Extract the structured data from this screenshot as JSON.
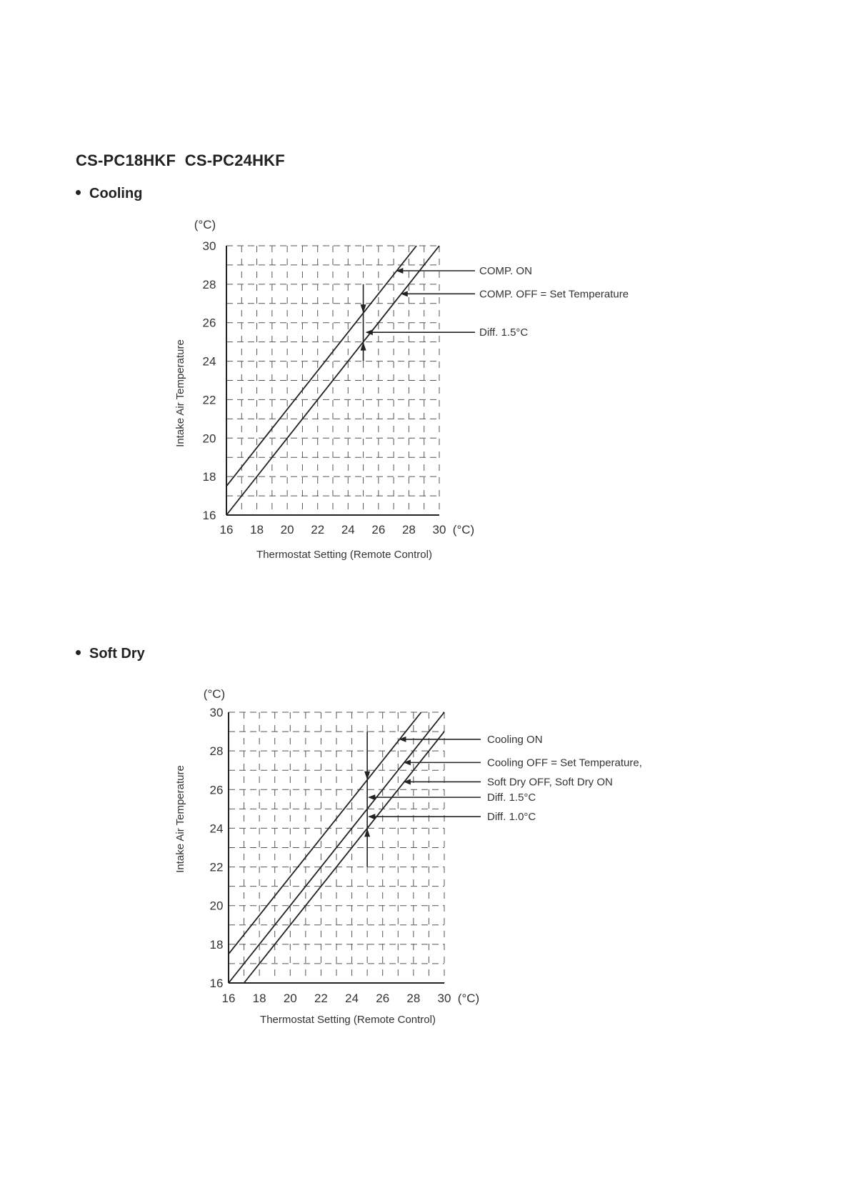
{
  "header": {
    "title": "CS-PC18HKF  CS-PC24HKF"
  },
  "sections": [
    {
      "label": "Cooling"
    },
    {
      "label": "Soft Dry"
    }
  ],
  "chart_data": [
    {
      "type": "line",
      "title": "Cooling",
      "xlabel": "Thermostat Setting (Remote Control)",
      "ylabel": "Intake Air Temperature",
      "x_unit": "(°C)",
      "y_unit": "(°C)",
      "xlim": [
        16,
        30
      ],
      "ylim": [
        16,
        30
      ],
      "x_ticks": [
        16,
        18,
        20,
        22,
        24,
        26,
        28,
        30
      ],
      "y_ticks": [
        16,
        18,
        20,
        22,
        24,
        26,
        28,
        30
      ],
      "grid": true,
      "series": [
        {
          "name": "COMP. ON",
          "x": [
            16,
            28.5
          ],
          "y": [
            17.5,
            30
          ]
        },
        {
          "name": "COMP. OFF = Set Temperature",
          "x": [
            16,
            30
          ],
          "y": [
            16,
            30
          ]
        }
      ],
      "differential_marker": {
        "x": 25,
        "y_range": [
          24,
          28
        ],
        "arrow_down_at": 26.5,
        "arrow_up_at": 25
      },
      "annotations": [
        {
          "text": "COMP. ON",
          "y": 28.7,
          "target_x": 27.2
        },
        {
          "text": "COMP. OFF = Set Temperature",
          "y": 27.5,
          "target_x": 27.5
        },
        {
          "text": "Diff. 1.5°C",
          "y": 25.5,
          "target_x": 25.2
        }
      ]
    },
    {
      "type": "line",
      "title": "Soft Dry",
      "xlabel": "Thermostat Setting (Remote Control)",
      "ylabel": "Intake Air Temperature",
      "x_unit": "(°C)",
      "y_unit": "(°C)",
      "xlim": [
        16,
        30
      ],
      "ylim": [
        16,
        30
      ],
      "x_ticks": [
        16,
        18,
        20,
        22,
        24,
        26,
        28,
        30
      ],
      "y_ticks": [
        16,
        18,
        20,
        22,
        24,
        26,
        28,
        30
      ],
      "grid": true,
      "series": [
        {
          "name": "Cooling ON",
          "x": [
            16,
            28.5
          ],
          "y": [
            17.5,
            30
          ]
        },
        {
          "name": "Cooling OFF = Set Temperature,",
          "x": [
            16,
            30
          ],
          "y": [
            16,
            30
          ]
        },
        {
          "name": "Soft Dry OFF, Soft Dry ON",
          "x": [
            17,
            30
          ],
          "y": [
            16,
            29
          ]
        }
      ],
      "differential_marker": {
        "x": 25,
        "y_range": [
          22,
          29
        ],
        "arrow_down_at": 26.5,
        "arrow_up_at": 24
      },
      "annotations": [
        {
          "text": "Cooling ON",
          "y": 28.6,
          "target_x": 27.1
        },
        {
          "text": "Cooling OFF = Set Temperature,",
          "y": 27.4,
          "target_x": 27.4
        },
        {
          "text": "Soft Dry OFF, Soft Dry ON",
          "y": 26.4,
          "target_x": 27.4
        },
        {
          "text": "Diff. 1.5°C",
          "y": 25.6,
          "target_x": 25.1
        },
        {
          "text": "Diff. 1.0°C",
          "y": 24.6,
          "target_x": 25.1
        }
      ]
    }
  ]
}
